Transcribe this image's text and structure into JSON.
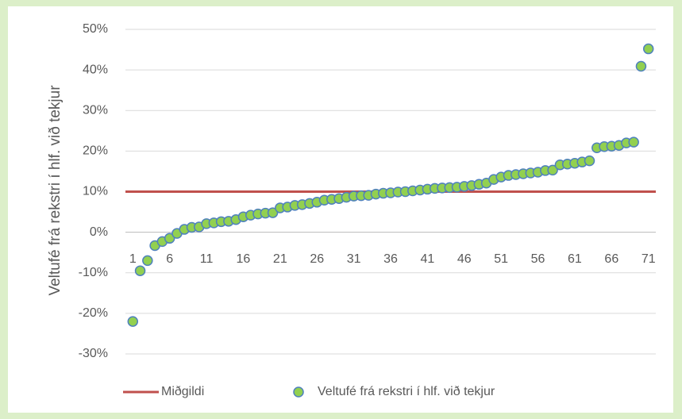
{
  "chart_data": {
    "type": "scatter",
    "y_label": "Veltufé frá rekstri í hlf. við tekjur",
    "x": [
      1,
      2,
      3,
      4,
      5,
      6,
      7,
      8,
      9,
      10,
      11,
      12,
      13,
      14,
      15,
      16,
      17,
      18,
      19,
      20,
      21,
      22,
      23,
      24,
      25,
      26,
      27,
      28,
      29,
      30,
      31,
      32,
      33,
      34,
      35,
      36,
      37,
      38,
      39,
      40,
      41,
      42,
      43,
      44,
      45,
      46,
      47,
      48,
      49,
      50,
      51,
      52,
      53,
      54,
      55,
      56,
      57,
      58,
      59,
      60,
      61,
      62,
      63,
      64,
      65,
      66,
      67,
      68,
      69,
      70,
      71
    ],
    "series": [
      {
        "name": "Veltufé frá rekstri í hlf. við tekjur",
        "color": "#92d050",
        "edge": "#4f81bd",
        "values": [
          -22,
          -9.5,
          -7,
          -3.3,
          -2.3,
          -1.5,
          -0.3,
          0.7,
          1.2,
          1.3,
          2.1,
          2.3,
          2.6,
          2.7,
          3.1,
          3.8,
          4.2,
          4.5,
          4.7,
          4.8,
          6.0,
          6.2,
          6.6,
          6.8,
          7.1,
          7.4,
          7.9,
          8.1,
          8.3,
          8.6,
          8.9,
          9.0,
          9.1,
          9.4,
          9.6,
          9.7,
          9.9,
          10.0,
          10.2,
          10.4,
          10.6,
          10.8,
          10.9,
          11.0,
          11.1,
          11.3,
          11.5,
          11.8,
          12.1,
          13.0,
          13.6,
          14.0,
          14.2,
          14.4,
          14.6,
          14.8,
          15.2,
          15.3,
          16.6,
          16.8,
          17.0,
          17.3,
          17.6,
          20.8,
          21.1,
          21.2,
          21.4,
          22.0,
          22.2,
          40.9,
          45.2
        ]
      }
    ],
    "median": {
      "name": "Miðgildi",
      "value": 10,
      "color": "#c0504d"
    },
    "xlim": [
      0,
      72
    ],
    "xticks": [
      1,
      6,
      11,
      16,
      21,
      26,
      31,
      36,
      41,
      46,
      51,
      56,
      61,
      66,
      71
    ],
    "ylim": [
      -30,
      50
    ],
    "yticks": [
      {
        "value": -30,
        "label": "-30%"
      },
      {
        "value": -20,
        "label": "-20%"
      },
      {
        "value": -10,
        "label": "-10%"
      },
      {
        "value": 0,
        "label": "0%"
      },
      {
        "value": 10,
        "label": "10%"
      },
      {
        "value": 20,
        "label": "20%"
      },
      {
        "value": 30,
        "label": "30%"
      },
      {
        "value": 40,
        "label": "40%"
      },
      {
        "value": 50,
        "label": "50%"
      }
    ],
    "grid": true
  }
}
